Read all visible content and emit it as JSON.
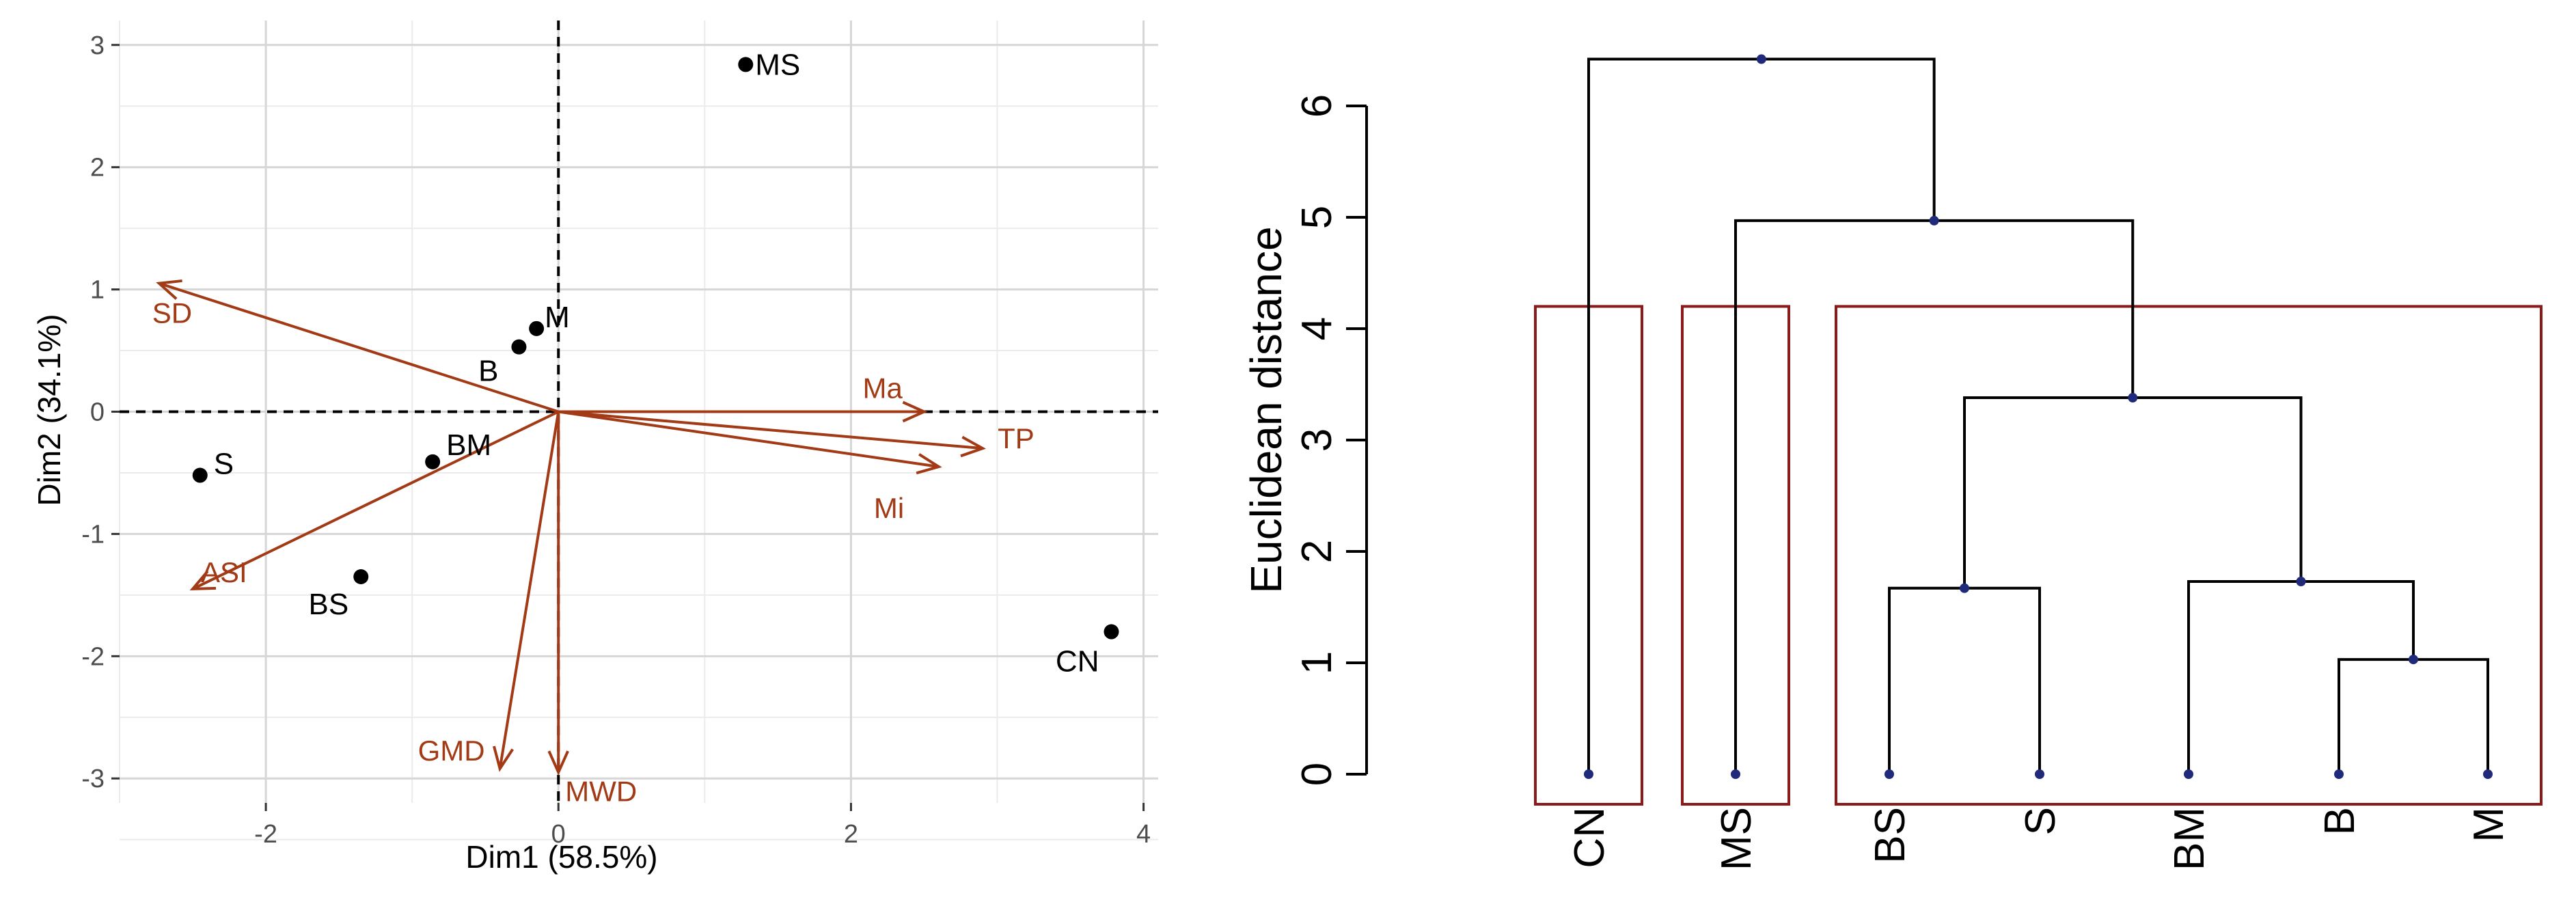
{
  "colors": {
    "arrow": "#a33a16",
    "point": "#000000",
    "grid_major": "#d6d6d6",
    "grid_minor": "#ebebeb",
    "cluster_box": "#8b1a1a",
    "node": "#1f2a7a",
    "branch": "#000000"
  },
  "chart_data": [
    {
      "type": "scatter",
      "subtype": "pca-biplot",
      "xlabel": "Dim1 (58.5%)",
      "ylabel": "Dim2 (34.1%)",
      "xlim": [
        -3.0,
        4.1
      ],
      "ylim": [
        -3.2,
        3.2
      ],
      "xticks": [
        -2,
        0,
        2,
        4
      ],
      "xtick_labels": [
        "-2",
        "0",
        "2",
        "4"
      ],
      "yticks": [
        -3,
        -2,
        -1,
        0,
        1,
        2,
        3
      ],
      "ytick_labels": [
        "-3",
        "-2",
        "-1",
        "0",
        "1",
        "2",
        "3"
      ],
      "grid": true,
      "points": [
        {
          "label": "MS",
          "x": 1.28,
          "y": 2.84
        },
        {
          "label": "M",
          "x": -0.15,
          "y": 0.68
        },
        {
          "label": "B",
          "x": -0.27,
          "y": 0.53
        },
        {
          "label": "BM",
          "x": -0.86,
          "y": -0.41
        },
        {
          "label": "S",
          "x": -2.45,
          "y": -0.52
        },
        {
          "label": "BS",
          "x": -1.35,
          "y": -1.35
        },
        {
          "label": "CN",
          "x": 3.78,
          "y": -1.8
        }
      ],
      "vectors": [
        {
          "label": "SD",
          "x": -2.73,
          "y": 1.05
        },
        {
          "label": "Ma",
          "x": 2.5,
          "y": 0.0
        },
        {
          "label": "TP",
          "x": 2.9,
          "y": -0.3
        },
        {
          "label": "Mi",
          "x": 2.6,
          "y": -0.45
        },
        {
          "label": "ASI",
          "x": -2.5,
          "y": -1.45
        },
        {
          "label": "GMD",
          "x": -0.4,
          "y": -2.92
        },
        {
          "label": "MWD",
          "x": 0.0,
          "y": -2.95
        }
      ]
    },
    {
      "type": "dendrogram",
      "ylabel": "Euclidean distance",
      "ylim": [
        -0.25,
        6.55
      ],
      "yticks": [
        0,
        1,
        2,
        3,
        4,
        5,
        6
      ],
      "ytick_labels": [
        "0",
        "1",
        "2",
        "3",
        "4",
        "5",
        "6"
      ],
      "leaves": [
        "CN",
        "MS",
        "BS",
        "S",
        "BM",
        "B",
        "M"
      ],
      "merges": [
        {
          "left": "B",
          "right": "M",
          "height": 1.03
        },
        {
          "left": "BS",
          "right": "S",
          "height": 1.67
        },
        {
          "left": "BM",
          "right": "B+M",
          "height": 1.73
        },
        {
          "left": "BS+S",
          "right": "BM+B+M",
          "height": 3.38
        },
        {
          "left": "MS",
          "right": "BS+S+BM+B+M",
          "height": 4.97
        },
        {
          "left": "CN",
          "right": "MS+BS+S+BM+B+M",
          "height": 6.42
        }
      ],
      "clusters": [
        [
          "CN"
        ],
        [
          "MS"
        ],
        [
          "BS",
          "S",
          "BM",
          "B",
          "M"
        ]
      ],
      "cluster_box_height": 4.2
    }
  ]
}
